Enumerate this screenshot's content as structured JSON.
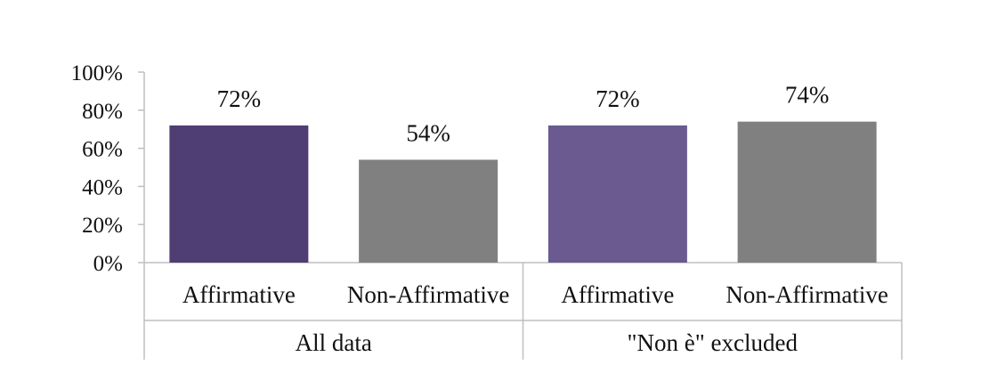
{
  "chart_data": {
    "type": "bar",
    "title": "",
    "xlabel": "",
    "ylabel": "",
    "ylim": [
      0,
      100
    ],
    "y_ticks": [
      "0%",
      "20%",
      "40%",
      "60%",
      "80%",
      "100%"
    ],
    "grid": false,
    "groups": [
      {
        "label": "All data",
        "bars": [
          {
            "category": "Affirmative",
            "value": 72,
            "label": "72%",
            "color": "#4e3e73"
          },
          {
            "category": "Non-Affirmative",
            "value": 54,
            "label": "54%",
            "color": "#808080"
          }
        ]
      },
      {
        "label": "\"Non è\" excluded",
        "bars": [
          {
            "category": "Affirmative",
            "value": 72,
            "label": "72%",
            "color": "#6a5a8f"
          },
          {
            "category": "Non-Affirmative",
            "value": 74,
            "label": "74%",
            "color": "#808080"
          }
        ]
      }
    ]
  }
}
